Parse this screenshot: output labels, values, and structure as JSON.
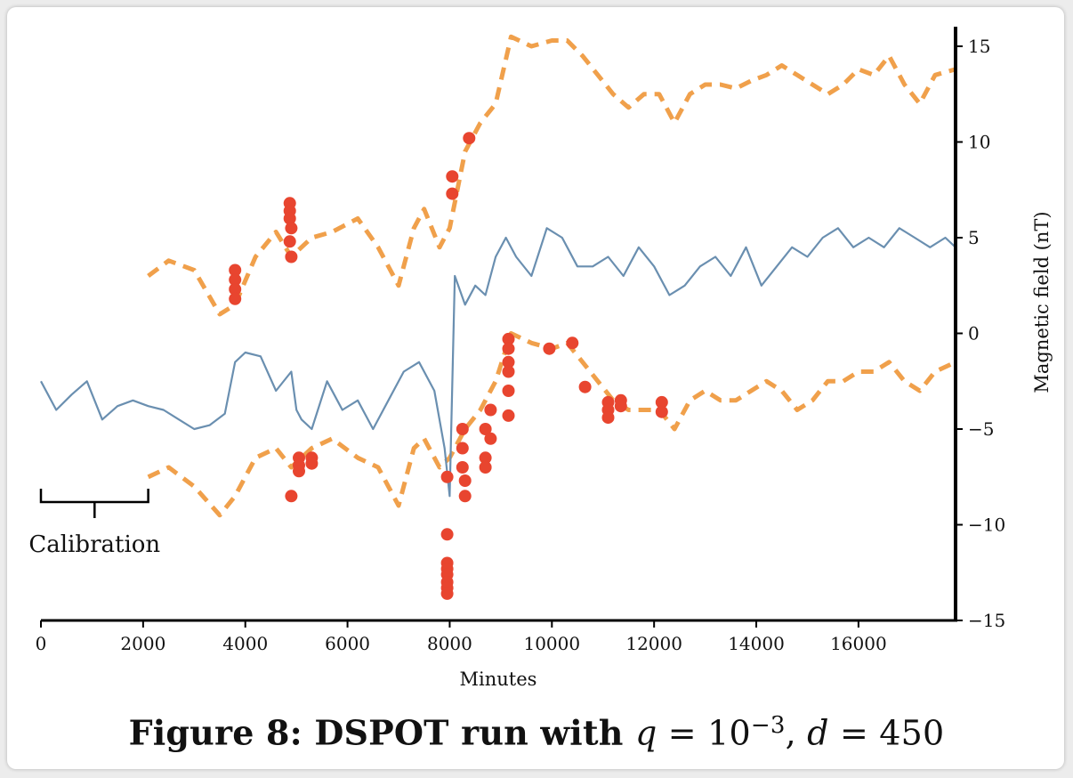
{
  "caption": "Figure 8: DSPOT run with q = 10^{-3}, d = 450",
  "caption_parts": {
    "prefix": "Figure 8: DSPOT run with ",
    "q_var": "q",
    "eq1": " = 10",
    "exponent": "−3",
    "comma": ", ",
    "d_var": "d",
    "eq2": " = 450"
  },
  "chart_data": {
    "type": "line",
    "xlabel": "Minutes",
    "ylabel": "Magnetic field (nT)",
    "xlim": [
      0,
      17900
    ],
    "ylim": [
      -15,
      16
    ],
    "x_ticks": [
      0,
      2000,
      4000,
      6000,
      8000,
      10000,
      12000,
      14000,
      16000
    ],
    "x_tick_labels": [
      "0",
      "2000",
      "4000",
      "6000",
      "8000",
      "10000",
      "12000",
      "14000",
      "16000"
    ],
    "y_ticks": [
      -15,
      -10,
      -5,
      0,
      5,
      10,
      15
    ],
    "y_tick_labels": [
      "−15",
      "−10",
      "−5",
      "0",
      "5",
      "10",
      "15"
    ],
    "y_axis_side": "right",
    "grid": false,
    "colors": {
      "signal": "#6a8fb0",
      "threshold": "#f0a04b",
      "alarm": "#e8452f"
    },
    "annotation": {
      "text": "Calibration",
      "x_start": 0,
      "x_end": 2100
    },
    "series": [
      {
        "role": "signal",
        "x": [
          0,
          300,
          600,
          900,
          1200,
          1500,
          1800,
          2100,
          2400,
          2700,
          3000,
          3300,
          3600,
          3800,
          4000,
          4300,
          4600,
          4900,
          5000,
          5100,
          5300,
          5600,
          5900,
          6200,
          6500,
          6800,
          7100,
          7400,
          7700,
          7900,
          8000,
          8100,
          8300,
          8500,
          8700,
          8900,
          9100,
          9300,
          9600,
          9900,
          10200,
          10500,
          10800,
          11100,
          11400,
          11700,
          12000,
          12300,
          12600,
          12900,
          13200,
          13500,
          13800,
          14100,
          14400,
          14700,
          15000,
          15300,
          15600,
          15900,
          16200,
          16500,
          16800,
          17100,
          17400,
          17700,
          17900
        ],
        "y": [
          -2.5,
          -4.0,
          -3.2,
          -2.5,
          -4.5,
          -3.8,
          -3.5,
          -3.8,
          -4.0,
          -4.5,
          -5.0,
          -4.8,
          -4.2,
          -1.5,
          -1.0,
          -1.2,
          -3.0,
          -2.0,
          -4.0,
          -4.5,
          -5.0,
          -2.5,
          -4.0,
          -3.5,
          -5.0,
          -3.5,
          -2.0,
          -1.5,
          -3.0,
          -6.0,
          -8.5,
          3.0,
          1.5,
          2.5,
          2.0,
          4.0,
          5.0,
          4.0,
          3.0,
          5.5,
          5.0,
          3.5,
          3.5,
          4.0,
          3.0,
          4.5,
          3.5,
          2.0,
          2.5,
          3.5,
          4.0,
          3.0,
          4.5,
          2.5,
          3.5,
          4.5,
          4.0,
          5.0,
          5.5,
          4.5,
          5.0,
          4.5,
          5.5,
          5.0,
          4.5,
          5.0,
          4.5
        ]
      },
      {
        "role": "upper-threshold",
        "x": [
          2100,
          2500,
          3000,
          3500,
          3800,
          4200,
          4600,
          4900,
          5300,
          5700,
          6200,
          6600,
          7000,
          7300,
          7500,
          7800,
          8000,
          8300,
          8600,
          8900,
          9200,
          9600,
          10000,
          10300,
          10600,
          10900,
          11200,
          11500,
          11800,
          12100,
          12400,
          12700,
          13000,
          13300,
          13600,
          13900,
          14200,
          14500,
          14800,
          15100,
          15400,
          15700,
          16000,
          16300,
          16600,
          16900,
          17200,
          17500,
          17900
        ],
        "y": [
          3.0,
          3.8,
          3.3,
          1.0,
          1.5,
          4.0,
          5.3,
          4.0,
          5.0,
          5.3,
          6.0,
          4.5,
          2.5,
          5.5,
          6.5,
          4.5,
          5.5,
          9.5,
          11.0,
          12.0,
          15.5,
          15.0,
          15.3,
          15.3,
          14.5,
          13.5,
          12.5,
          11.8,
          12.5,
          12.5,
          11.0,
          12.5,
          13.0,
          13.0,
          12.8,
          13.2,
          13.5,
          14.0,
          13.5,
          13.0,
          12.5,
          13.0,
          13.8,
          13.5,
          14.5,
          13.0,
          12.0,
          13.5,
          13.8
        ]
      },
      {
        "role": "lower-threshold",
        "x": [
          2100,
          2500,
          3000,
          3500,
          3800,
          4200,
          4600,
          4900,
          5300,
          5700,
          6200,
          6600,
          7000,
          7300,
          7500,
          7800,
          8000,
          8300,
          8600,
          8900,
          9200,
          9600,
          10000,
          10300,
          10600,
          10900,
          11200,
          11500,
          11800,
          12100,
          12400,
          12700,
          13000,
          13300,
          13600,
          13900,
          14200,
          14500,
          14800,
          15100,
          15400,
          15700,
          16000,
          16300,
          16600,
          16900,
          17200,
          17500,
          17900
        ],
        "y": [
          -7.5,
          -7.0,
          -8.0,
          -9.5,
          -8.5,
          -6.5,
          -6.0,
          -7.0,
          -6.0,
          -5.5,
          -6.5,
          -7.0,
          -9.0,
          -6.0,
          -5.5,
          -7.0,
          -6.5,
          -5.0,
          -4.0,
          -2.5,
          0.0,
          -0.5,
          -0.8,
          -0.5,
          -1.5,
          -2.5,
          -3.5,
          -4.0,
          -4.0,
          -4.0,
          -5.0,
          -3.5,
          -3.0,
          -3.5,
          -3.5,
          -3.0,
          -2.5,
          -3.0,
          -4.0,
          -3.5,
          -2.5,
          -2.5,
          -2.0,
          -2.0,
          -1.5,
          -2.5,
          -3.0,
          -2.0,
          -1.5
        ]
      }
    ],
    "alarms": {
      "x": [
        3800,
        3800,
        3800,
        3800,
        4870,
        4870,
        4870,
        4870,
        4900,
        4900,
        4900,
        5050,
        5050,
        5050,
        5300,
        5300,
        7950,
        7950,
        7950,
        7950,
        7950,
        7950,
        7950,
        7950,
        8050,
        8050,
        8250,
        8250,
        8250,
        8300,
        8300,
        8380,
        8700,
        8700,
        8700,
        8800,
        8800,
        9150,
        9150,
        9150,
        9150,
        9150,
        9150,
        9950,
        10400,
        10650,
        11100,
        11100,
        11100,
        11350,
        11350,
        12150,
        12150
      ],
      "y": [
        3.3,
        2.8,
        2.3,
        1.8,
        6.8,
        6.4,
        6.0,
        4.8,
        5.5,
        4.0,
        -8.5,
        -6.5,
        -6.9,
        -7.2,
        -6.5,
        -6.8,
        -10.5,
        -12.0,
        -12.3,
        -12.6,
        -13.0,
        -13.3,
        -13.6,
        -7.5,
        8.2,
        7.3,
        -5.0,
        -6.0,
        -7.0,
        -7.7,
        -8.5,
        10.2,
        -5.0,
        -6.5,
        -7.0,
        -5.5,
        -4.0,
        -0.3,
        -0.8,
        -1.5,
        -2.0,
        -3.0,
        -4.3,
        -0.8,
        -0.5,
        -2.8,
        -3.6,
        -4.0,
        -4.4,
        -3.5,
        -3.8,
        -3.6,
        -4.1
      ]
    }
  }
}
